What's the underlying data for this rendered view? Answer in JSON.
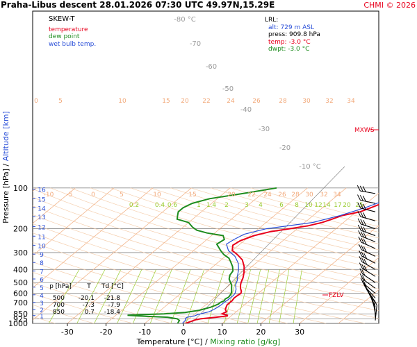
{
  "header": {
    "title": "Praha-Libus   descent   28.01.2026 07:30 UTC  49.97N,15.29E",
    "copyright": "CHMI © 2026"
  },
  "legend": {
    "heading": "SKEW-T",
    "items": [
      {
        "label": "temperature",
        "color": "#e8001c"
      },
      {
        "label": "dew point",
        "color": "#1e8c1e"
      },
      {
        "label": "wet bulb temp.",
        "color": "#2a4fd8"
      }
    ]
  },
  "lrl": {
    "heading": "LRL:",
    "alt": "alt: 729 m ASL",
    "press": "press: 909.8 hPa",
    "temp": "temp: -3.0 °C",
    "dwpt": "dwpt: -3.0 °C"
  },
  "table": {
    "header": [
      "p [hPa]",
      "T",
      "Td [°C]"
    ],
    "rows": [
      [
        "500",
        "-20.1",
        "-21.8"
      ],
      [
        "700",
        "-7.3",
        "-7.9"
      ],
      [
        "850",
        "0.7",
        "-18.4"
      ]
    ]
  },
  "markers": {
    "mxws": "MXWS",
    "fzlv": "FZLV"
  },
  "colors": {
    "temperature": "#e8001c",
    "dewpoint": "#1e8c1e",
    "wetbulb": "#2a4fd8",
    "isotherm": "#f2b48a",
    "mixing": "#9acd32",
    "dryadiabat": "#f5cfae"
  },
  "chart_data": {
    "type": "line",
    "xlabel": "Temperature [°C]",
    "xlabel2": "Mixing ratio [g/kg]",
    "ylabel": "Pressure [hPa]",
    "ylabel2": "Altitude [km]",
    "xlim": [
      -35,
      40
    ],
    "ylim": [
      1000,
      100
    ],
    "x_ticks": [
      -30,
      -20,
      -10,
      0,
      10,
      20,
      30
    ],
    "pressure_ticks": [
      100,
      200,
      300,
      400,
      500,
      600,
      700,
      850,
      925,
      1000
    ],
    "altitude_ticks": [
      {
        "km": "1",
        "p": 875
      },
      {
        "km": "2",
        "p": 790
      },
      {
        "km": "3",
        "p": 700
      },
      {
        "km": "4",
        "p": 615
      },
      {
        "km": "5",
        "p": 540
      },
      {
        "km": "6",
        "p": 470
      },
      {
        "km": "7",
        "p": 410
      },
      {
        "km": "8",
        "p": 355
      },
      {
        "km": "9",
        "p": 308
      },
      {
        "km": "10",
        "p": 265
      },
      {
        "km": "11",
        "p": 227
      },
      {
        "km": "12",
        "p": 193
      },
      {
        "km": "13",
        "p": 163
      },
      {
        "km": "14",
        "p": 140
      },
      {
        "km": "15",
        "p": 120
      },
      {
        "km": "16",
        "p": 102
      }
    ],
    "isotherm_labels_upper": [
      "-80 °C",
      "-70",
      "-60",
      "-50",
      "-40",
      "-30",
      "-20",
      "-10 °C"
    ],
    "isotherm_labels_200": [
      "0",
      "5",
      "10",
      "15",
      "20",
      "22",
      "24",
      "26",
      "28",
      "30",
      "32",
      "34"
    ],
    "isotherm_labels_400": [
      "-10",
      "-5",
      "0",
      "5",
      "10",
      "15",
      "20",
      "22",
      "24",
      "26",
      "28",
      "30",
      "32",
      "34"
    ],
    "mixing_labels": [
      "0.2",
      "0.4",
      "0.6",
      "1",
      "1.4",
      "2",
      "3",
      "4",
      "6",
      "8",
      "10",
      "12",
      "14",
      "17",
      "20",
      "25"
    ],
    "series": [
      {
        "name": "temperature",
        "points": [
          [
            1000,
            0.5
          ],
          [
            940,
            2.0
          ],
          [
            925,
            3.0
          ],
          [
            900,
            6.5
          ],
          [
            880,
            9.0
          ],
          [
            870,
            8.8
          ],
          [
            850,
            7.0
          ],
          [
            820,
            7.5
          ],
          [
            790,
            6.5
          ],
          [
            760,
            6.0
          ],
          [
            730,
            5.5
          ],
          [
            700,
            5.5
          ],
          [
            680,
            5.5
          ],
          [
            650,
            5.2
          ],
          [
            620,
            5.3
          ],
          [
            600,
            5.5
          ],
          [
            580,
            5.0
          ],
          [
            550,
            3.8
          ],
          [
            520,
            2.8
          ],
          [
            500,
            2.2
          ],
          [
            460,
            1.2
          ],
          [
            420,
            -0.2
          ],
          [
            380,
            -2.0
          ],
          [
            340,
            -4.5
          ],
          [
            310,
            -7.5
          ],
          [
            290,
            -10.0
          ],
          [
            265,
            -11.5
          ],
          [
            245,
            -11.0
          ],
          [
            225,
            -9.0
          ],
          [
            210,
            -6.0
          ],
          [
            200,
            -2.0
          ],
          [
            190,
            2.0
          ],
          [
            180,
            4.5
          ],
          [
            170,
            6.0
          ],
          [
            160,
            7.5
          ],
          [
            150,
            11.0
          ],
          [
            140,
            12.5
          ],
          [
            130,
            14.0
          ],
          [
            120,
            15.5
          ],
          [
            110,
            18.0
          ],
          [
            100,
            21.0
          ]
        ]
      },
      {
        "name": "dew point",
        "points": [
          [
            1000,
            -1.5
          ],
          [
            950,
            -2.0
          ],
          [
            925,
            -3.0
          ],
          [
            900,
            -6.0
          ],
          [
            880,
            -14.0
          ],
          [
            870,
            -17.0
          ],
          [
            860,
            -13.0
          ],
          [
            850,
            -8.0
          ],
          [
            830,
            -3.0
          ],
          [
            800,
            0.0
          ],
          [
            780,
            1.0
          ],
          [
            760,
            2.0
          ],
          [
            740,
            2.5
          ],
          [
            720,
            3.0
          ],
          [
            700,
            3.0
          ],
          [
            680,
            3.5
          ],
          [
            660,
            3.2
          ],
          [
            640,
            3.5
          ],
          [
            620,
            3.3
          ],
          [
            600,
            3.0
          ],
          [
            580,
            2.5
          ],
          [
            550,
            1.5
          ],
          [
            520,
            0.5
          ],
          [
            500,
            -0.5
          ],
          [
            470,
            -2.0
          ],
          [
            440,
            -3.0
          ],
          [
            410,
            -3.5
          ],
          [
            380,
            -5.0
          ],
          [
            350,
            -7.0
          ],
          [
            330,
            -8.5
          ],
          [
            310,
            -11.0
          ],
          [
            290,
            -13.0
          ],
          [
            260,
            -16.0
          ],
          [
            240,
            -15.5
          ],
          [
            225,
            -17.0
          ],
          [
            215,
            -22.0
          ],
          [
            205,
            -25.5
          ],
          [
            195,
            -27.5
          ],
          [
            180,
            -30.0
          ],
          [
            170,
            -34.0
          ],
          [
            160,
            -35.0
          ],
          [
            150,
            -36.0
          ],
          [
            140,
            -36.0
          ],
          [
            130,
            -35.0
          ],
          [
            120,
            -32.0
          ],
          [
            110,
            -25.0
          ],
          [
            100,
            -18.0
          ]
        ]
      },
      {
        "name": "wet bulb temp.",
        "points": [
          [
            1000,
            -0.3
          ],
          [
            940,
            -0.5
          ],
          [
            925,
            -1.0
          ],
          [
            900,
            -1.0
          ],
          [
            880,
            0.5
          ],
          [
            860,
            1.0
          ],
          [
            850,
            1.5
          ],
          [
            820,
            3.0
          ],
          [
            790,
            3.5
          ],
          [
            760,
            3.8
          ],
          [
            730,
            4.0
          ],
          [
            700,
            4.0
          ],
          [
            660,
            4.2
          ],
          [
            620,
            4.2
          ],
          [
            600,
            4.0
          ],
          [
            560,
            3.0
          ],
          [
            520,
            1.5
          ],
          [
            480,
            0.5
          ],
          [
            440,
            -1.0
          ],
          [
            400,
            -2.5
          ],
          [
            360,
            -4.5
          ],
          [
            320,
            -7.5
          ],
          [
            290,
            -11.0
          ],
          [
            260,
            -13.5
          ],
          [
            240,
            -13.0
          ],
          [
            220,
            -12.0
          ],
          [
            200,
            -8.0
          ],
          [
            180,
            2.0
          ],
          [
            160,
            7.0
          ],
          [
            140,
            11.0
          ],
          [
            120,
            14.5
          ],
          [
            100,
            19.0
          ]
        ]
      }
    ]
  }
}
